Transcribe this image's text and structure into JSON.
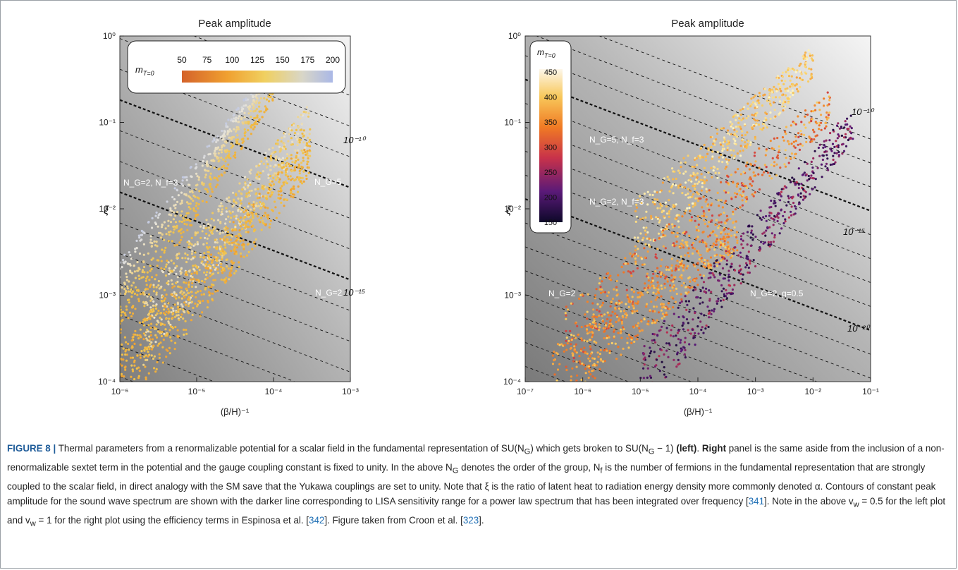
{
  "figure": {
    "label": "FIGURE 8 |",
    "caption_parts": {
      "p1": " Thermal parameters from a renormalizable potential for a scalar field in the fundamental representation of SU(N",
      "p2": ") which gets broken to SU(N",
      "p3": " − 1) ",
      "left_bold": "(left)",
      "p4": ". ",
      "right_bold": "Right",
      "p5": " panel is the same aside from the inclusion of a non-renormalizable sextet term in the potential and the gauge coupling constant is fixed to unity. In the above N",
      "p6": " denotes the order of the group, N",
      "p7": " is the number of fermions in the fundamental representation that are strongly coupled to the scalar field, in direct analogy with the SM save that the Yukawa couplings are set to unity. Note that ξ is the ratio of latent heat to radiation energy density more commonly denoted α. Contours of constant peak amplitude for the sound wave spectrum are shown with the darker line corresponding to LISA sensitivity range for a power law spectrum that has been integrated over frequency [",
      "ref1": "341",
      "p8": "]. Note in the above v",
      "p9": " = 0.5 for the left plot and v",
      "p10": " = 1 for the right plot using the efficiency terms in Espinosa et al. [",
      "ref2": "342",
      "p11": "]. Figure taken from Croon et al. [",
      "ref3": "323",
      "p12": "]."
    },
    "sub_G": "G",
    "sub_f": "f",
    "sub_w": "w"
  },
  "chart_data": [
    {
      "type": "scatter",
      "title": "Peak amplitude",
      "xlabel": "(β/H)⁻¹",
      "ylabel": "ξ",
      "x_log": true,
      "y_log": true,
      "xlim": [
        1e-06,
        0.001
      ],
      "ylim": [
        0.0001,
        1
      ],
      "xticks": [
        "10⁻⁶",
        "10⁻⁵",
        "10⁻⁴",
        "10⁻³"
      ],
      "yticks": [
        "10⁻⁴",
        "10⁻³",
        "10⁻²",
        "10⁻¹",
        "10⁰"
      ],
      "legend": {
        "title": "m_{T=0}",
        "subscript": "T=0",
        "ticks": [
          "50",
          "75",
          "100",
          "125",
          "150",
          "175",
          "200"
        ],
        "placement": "top-left"
      },
      "contour_labels": [
        "10⁻¹⁰",
        "10⁻¹⁵"
      ],
      "annotations": [
        "N_G=2, N_f=3",
        "N_G=5",
        "N_G=2"
      ],
      "series": [
        {
          "name": "N_G=2, N_f=3",
          "x_range": [
            1e-06,
            0.0001
          ],
          "y_range": [
            0.001,
            0.3
          ]
        },
        {
          "name": "N_G=5",
          "x_range": [
            2e-06,
            0.0003
          ],
          "y_range": [
            0.0004,
            0.1
          ]
        },
        {
          "name": "N_G=2",
          "x_range": [
            1e-06,
            0.0003
          ],
          "y_range": [
            0.0001,
            0.04
          ]
        }
      ],
      "colors": {
        "low": "#d4622a",
        "mid": "#f0c24a",
        "high": "#aab8e6"
      }
    },
    {
      "type": "scatter",
      "title": "Peak amplitude",
      "xlabel": "(β/H)⁻¹",
      "ylabel": "ξ",
      "x_log": true,
      "y_log": true,
      "xlim": [
        1e-07,
        0.1
      ],
      "ylim": [
        0.0001,
        1
      ],
      "xticks": [
        "10⁻⁷",
        "10⁻⁶",
        "10⁻⁵",
        "10⁻⁴",
        "10⁻³",
        "10⁻²",
        "10⁻¹"
      ],
      "yticks": [
        "10⁻⁴",
        "10⁻³",
        "10⁻²",
        "10⁻¹",
        "10⁰"
      ],
      "legend": {
        "title": "m_{T=0}",
        "subscript": "T=0",
        "ticks": [
          "450",
          "400",
          "350",
          "300",
          "250",
          "200",
          "150"
        ],
        "placement": "top-left"
      },
      "contour_labels": [
        "10⁻¹⁰",
        "10⁻¹⁵",
        "10⁻²⁰"
      ],
      "annotations": [
        "N_G=5, N_f=3",
        "N_G=2, N_f=3",
        "N_G=2",
        "N_G=2, g=0.5"
      ],
      "series": [
        {
          "name": "N_G=5, N_f=3",
          "x_range": [
            8e-06,
            0.01
          ],
          "y_range": [
            0.005,
            0.5
          ]
        },
        {
          "name": "N_G=2, N_f=3",
          "x_range": [
            5e-07,
            0.02
          ],
          "y_range": [
            0.0003,
            0.15
          ]
        },
        {
          "name": "N_G=2",
          "x_range": [
            3e-07,
            0.0005
          ],
          "y_range": [
            0.0001,
            0.005
          ]
        },
        {
          "name": "N_G=2, g=0.5",
          "x_range": [
            1e-05,
            0.05
          ],
          "y_range": [
            0.0001,
            0.1
          ]
        }
      ],
      "colors": {
        "low": "#0d0829",
        "mid": "#c8324a",
        "high": "#fdf7c8"
      }
    }
  ]
}
